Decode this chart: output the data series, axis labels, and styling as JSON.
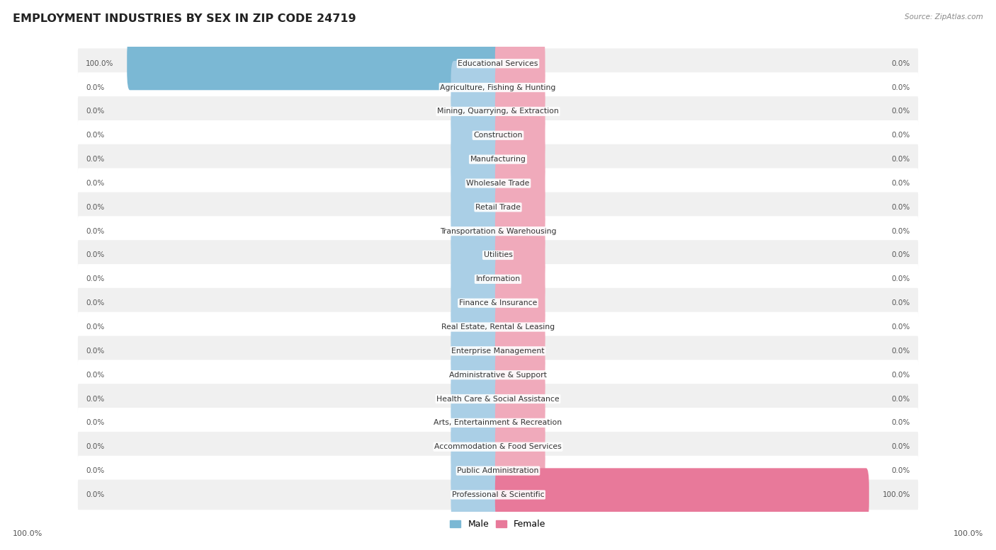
{
  "title": "EMPLOYMENT INDUSTRIES BY SEX IN ZIP CODE 24719",
  "source": "Source: ZipAtlas.com",
  "categories": [
    "Educational Services",
    "Agriculture, Fishing & Hunting",
    "Mining, Quarrying, & Extraction",
    "Construction",
    "Manufacturing",
    "Wholesale Trade",
    "Retail Trade",
    "Transportation & Warehousing",
    "Utilities",
    "Information",
    "Finance & Insurance",
    "Real Estate, Rental & Leasing",
    "Enterprise Management",
    "Administrative & Support",
    "Health Care & Social Assistance",
    "Arts, Entertainment & Recreation",
    "Accommodation & Food Services",
    "Public Administration",
    "Professional & Scientific"
  ],
  "male_values": [
    100.0,
    0.0,
    0.0,
    0.0,
    0.0,
    0.0,
    0.0,
    0.0,
    0.0,
    0.0,
    0.0,
    0.0,
    0.0,
    0.0,
    0.0,
    0.0,
    0.0,
    0.0,
    0.0
  ],
  "female_values": [
    0.0,
    0.0,
    0.0,
    0.0,
    0.0,
    0.0,
    0.0,
    0.0,
    0.0,
    0.0,
    0.0,
    0.0,
    0.0,
    0.0,
    0.0,
    0.0,
    0.0,
    0.0,
    100.0
  ],
  "male_color": "#7BB8D4",
  "female_color": "#E8799A",
  "male_color_light": "#AACFE6",
  "female_color_light": "#F0AABB",
  "background_color": "#FFFFFF",
  "row_bg_color": "#F0F0F0",
  "row_alt_color": "#FFFFFF",
  "title_fontsize": 11.5,
  "label_fontsize": 7.8,
  "value_fontsize": 7.5,
  "stub_size": 12.0,
  "bar_height": 0.62
}
